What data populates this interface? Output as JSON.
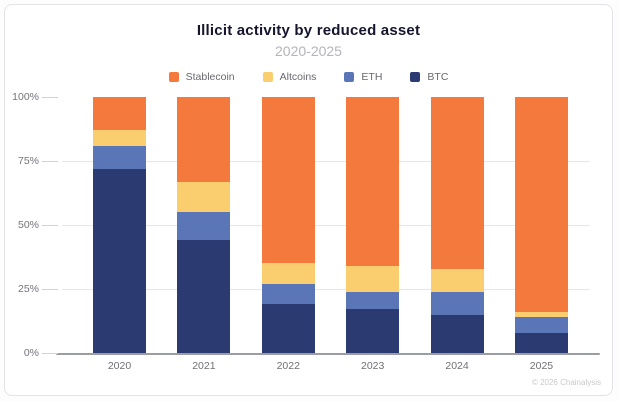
{
  "card": {
    "title": "Illicit activity by reduced asset",
    "subtitle": "2020-2025",
    "footer": "© 2026 Chainalysis"
  },
  "colors": {
    "stablecoin": "#F4793D",
    "altcoins": "#FACD6E",
    "eth": "#5B76B7",
    "btc": "#2B3A70",
    "axis_line": "#9C9CA3",
    "gridline": "#E6E6E9",
    "tick_text": "#74747B"
  },
  "legend": {
    "items": [
      {
        "label": "Stablecoin",
        "color": "#F4793D"
      },
      {
        "label": "Altcoins",
        "color": "#FACD6E"
      },
      {
        "label": "ETH",
        "color": "#5B76B7"
      },
      {
        "label": "BTC",
        "color": "#2B3A70"
      }
    ]
  },
  "chart_data": {
    "type": "bar",
    "stacked": true,
    "title": "Illicit activity by reduced asset",
    "subtitle": "2020-2025",
    "categories": [
      "2020",
      "2021",
      "2022",
      "2023",
      "2024",
      "2025"
    ],
    "series": [
      {
        "name": "Stablecoin",
        "color": "#F4793D",
        "values": [
          13,
          33,
          65,
          66,
          67,
          84
        ]
      },
      {
        "name": "Altcoins",
        "color": "#FACD6E",
        "values": [
          6,
          12,
          8,
          10,
          9,
          2
        ]
      },
      {
        "name": "ETH",
        "color": "#5B76B7",
        "values": [
          9,
          11,
          8,
          7,
          9,
          6
        ]
      },
      {
        "name": "BTC",
        "color": "#2B3A70",
        "values": [
          72,
          44,
          19,
          17,
          15,
          8
        ]
      }
    ],
    "xlabel": "",
    "ylabel": "",
    "ylim": [
      0,
      100
    ],
    "y_ticks": [
      "0%",
      "25%",
      "50%",
      "75%",
      "100%"
    ],
    "y_tick_values": [
      0,
      25,
      50,
      75,
      100
    ],
    "gridline_values": [
      25,
      50,
      75
    ],
    "grid": true,
    "legend_position": "top"
  }
}
